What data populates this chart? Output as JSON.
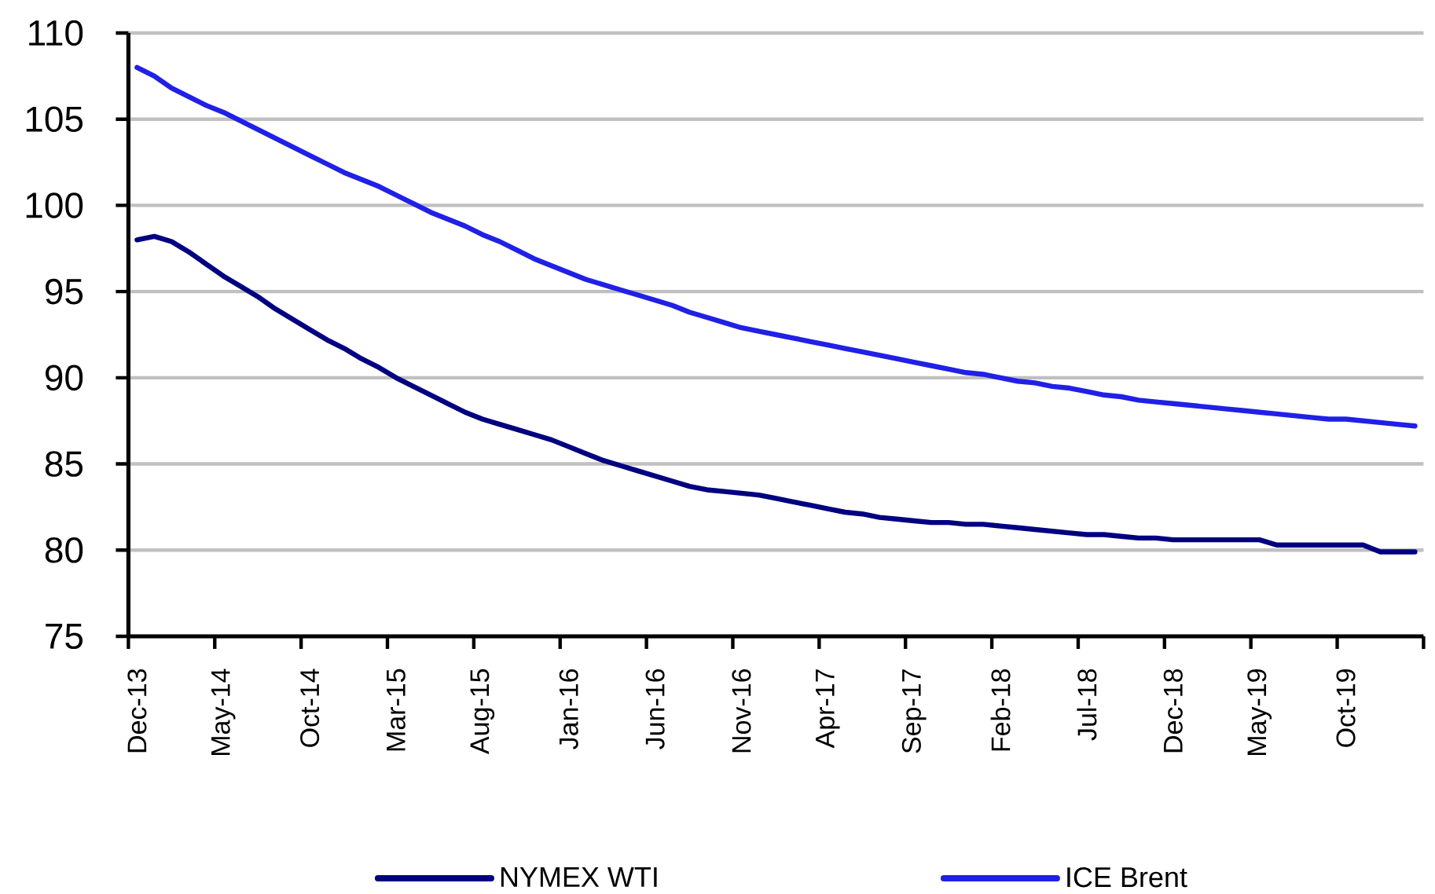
{
  "chart_data": {
    "type": "line",
    "categories": [
      "Dec-13",
      null,
      null,
      null,
      null,
      "May-14",
      null,
      null,
      null,
      null,
      "Oct-14",
      null,
      null,
      null,
      null,
      "Mar-15",
      null,
      null,
      null,
      null,
      "Aug-15",
      null,
      null,
      null,
      null,
      "Jan-16",
      null,
      null,
      null,
      null,
      "Jun-16",
      null,
      null,
      null,
      null,
      "Nov-16",
      null,
      null,
      null,
      null,
      "Apr-17",
      null,
      null,
      null,
      null,
      "Sep-17",
      null,
      null,
      null,
      null,
      "Feb-18",
      null,
      null,
      null,
      null,
      "Jul-18",
      null,
      null,
      null,
      null,
      "Dec-18",
      null,
      null,
      null,
      null,
      "May-19",
      null,
      null,
      null,
      null,
      "Oct-19",
      null,
      null,
      null,
      null
    ],
    "series": [
      {
        "name": "NYMEX WTI",
        "color": "#000080",
        "values": [
          98.0,
          98.2,
          97.9,
          97.3,
          96.6,
          95.9,
          95.3,
          94.7,
          94.0,
          93.4,
          92.8,
          92.2,
          91.7,
          91.1,
          90.6,
          90.0,
          89.5,
          89.0,
          88.5,
          88.0,
          87.6,
          87.3,
          87.0,
          86.7,
          86.4,
          86.0,
          85.6,
          85.2,
          84.9,
          84.6,
          84.3,
          84.0,
          83.7,
          83.5,
          83.4,
          83.3,
          83.2,
          83.0,
          82.8,
          82.6,
          82.4,
          82.2,
          82.1,
          81.9,
          81.8,
          81.7,
          81.6,
          81.6,
          81.5,
          81.5,
          81.4,
          81.3,
          81.2,
          81.1,
          81.0,
          80.9,
          80.9,
          80.8,
          80.7,
          80.7,
          80.6,
          80.6,
          80.6,
          80.6,
          80.6,
          80.6,
          80.3,
          80.3,
          80.3,
          80.3,
          80.3,
          80.3,
          79.9,
          79.9,
          79.9
        ]
      },
      {
        "name": "ICE Brent",
        "color": "#2020E6",
        "values": [
          108.0,
          107.5,
          106.8,
          106.3,
          105.8,
          105.4,
          104.9,
          104.4,
          103.9,
          103.4,
          102.9,
          102.4,
          101.9,
          101.5,
          101.1,
          100.6,
          100.1,
          99.6,
          99.2,
          98.8,
          98.3,
          97.9,
          97.4,
          96.9,
          96.5,
          96.1,
          95.7,
          95.4,
          95.1,
          94.8,
          94.5,
          94.2,
          93.8,
          93.5,
          93.2,
          92.9,
          92.7,
          92.5,
          92.3,
          92.1,
          91.9,
          91.7,
          91.5,
          91.3,
          91.1,
          90.9,
          90.7,
          90.5,
          90.3,
          90.2,
          90.0,
          89.8,
          89.7,
          89.5,
          89.4,
          89.2,
          89.0,
          88.9,
          88.7,
          88.6,
          88.5,
          88.4,
          88.3,
          88.2,
          88.1,
          88.0,
          87.9,
          87.8,
          87.7,
          87.6,
          87.6,
          87.5,
          87.4,
          87.3,
          87.2
        ]
      }
    ],
    "ylim": [
      75,
      110
    ],
    "yticks": [
      75,
      80,
      85,
      90,
      95,
      100,
      105,
      110
    ],
    "grid": "y",
    "legend": "bottom",
    "line_style": "solid"
  }
}
